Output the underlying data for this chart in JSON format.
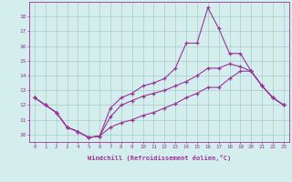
{
  "xlabel": "Windchill (Refroidissement éolien,°C)",
  "x": [
    0,
    1,
    2,
    3,
    4,
    5,
    6,
    7,
    8,
    9,
    10,
    11,
    12,
    13,
    14,
    15,
    16,
    17,
    18,
    19,
    20,
    21,
    22,
    23
  ],
  "line_top": [
    12.5,
    12.0,
    11.5,
    10.5,
    10.2,
    9.8,
    9.9,
    11.8,
    12.5,
    12.8,
    13.3,
    13.5,
    13.8,
    14.5,
    16.2,
    16.2,
    18.6,
    17.2,
    15.5,
    15.5,
    14.3,
    13.3,
    12.5,
    12.0
  ],
  "line_mid": [
    12.5,
    12.0,
    11.5,
    10.5,
    10.2,
    9.8,
    9.9,
    11.2,
    12.0,
    12.3,
    12.6,
    12.8,
    13.0,
    13.3,
    13.6,
    14.0,
    14.5,
    14.5,
    14.8,
    14.6,
    14.3,
    13.3,
    12.5,
    12.0
  ],
  "line_bot": [
    12.5,
    12.0,
    11.5,
    10.5,
    10.2,
    9.8,
    9.9,
    10.5,
    10.8,
    11.0,
    11.3,
    11.5,
    11.8,
    12.1,
    12.5,
    12.8,
    13.2,
    13.2,
    13.8,
    14.3,
    14.3,
    13.3,
    12.5,
    12.0
  ],
  "color": "#993399",
  "bg_color": "#d4eeee",
  "grid_color": "#aacccc",
  "ylim": [
    9.5,
    19.0
  ],
  "yticks": [
    10,
    11,
    12,
    13,
    14,
    15,
    16,
    17,
    18
  ],
  "xticks": [
    0,
    1,
    2,
    3,
    4,
    5,
    6,
    7,
    8,
    9,
    10,
    11,
    12,
    13,
    14,
    15,
    16,
    17,
    18,
    19,
    20,
    21,
    22,
    23
  ]
}
